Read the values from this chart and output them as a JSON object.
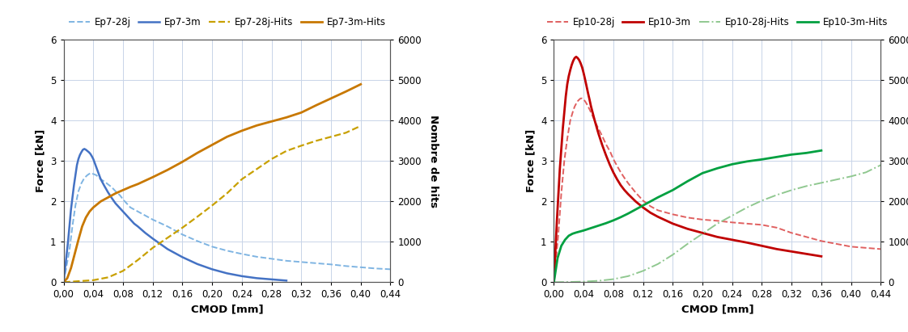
{
  "left": {
    "xlabel": "CMOD [mm]",
    "ylabel_left": "Force [kN]",
    "ylabel_right": "Nombre de hits",
    "xlim": [
      0,
      0.44
    ],
    "ylim_left": [
      0,
      6
    ],
    "ylim_right": [
      0,
      6000
    ],
    "xticks": [
      0.0,
      0.04,
      0.08,
      0.12,
      0.16,
      0.2,
      0.24,
      0.28,
      0.32,
      0.36,
      0.4,
      0.44
    ],
    "xtick_labels": [
      "0,00",
      "0,04",
      "0,08",
      "0,12",
      "0,16",
      "0,20",
      "0,24",
      "0,28",
      "0,32",
      "0,36",
      "0,40",
      "0,44"
    ],
    "yticks_left": [
      0,
      1,
      2,
      3,
      4,
      5,
      6
    ],
    "yticks_right": [
      0,
      1000,
      2000,
      3000,
      4000,
      5000,
      6000
    ],
    "legend": [
      "Ep7-28j",
      "Ep7-3m",
      "Ep7-28j-Hits",
      "Ep7-3m-Hits"
    ],
    "color_28j": "#7EB4E2",
    "color_3m": "#4472C4",
    "color_hits_28j": "#C8A000",
    "color_hits_3m": "#C87800",
    "ep7_28j_x": [
      0,
      0.008,
      0.012,
      0.016,
      0.02,
      0.024,
      0.028,
      0.032,
      0.036,
      0.04,
      0.044,
      0.05,
      0.056,
      0.06,
      0.065,
      0.07,
      0.076,
      0.08,
      0.085,
      0.09,
      0.095,
      0.1,
      0.11,
      0.12,
      0.14,
      0.16,
      0.18,
      0.2,
      0.22,
      0.24,
      0.26,
      0.28,
      0.3,
      0.32,
      0.34,
      0.36,
      0.38,
      0.4,
      0.42,
      0.44
    ],
    "ep7_28j_y": [
      0,
      0.8,
      1.4,
      1.9,
      2.25,
      2.45,
      2.58,
      2.65,
      2.7,
      2.68,
      2.65,
      2.55,
      2.48,
      2.42,
      2.35,
      2.25,
      2.15,
      2.05,
      1.95,
      1.85,
      1.8,
      1.75,
      1.65,
      1.55,
      1.38,
      1.18,
      1.02,
      0.88,
      0.78,
      0.7,
      0.63,
      0.58,
      0.53,
      0.5,
      0.47,
      0.44,
      0.4,
      0.37,
      0.34,
      0.32
    ],
    "ep7_3m_x": [
      0,
      0.006,
      0.01,
      0.014,
      0.018,
      0.02,
      0.022,
      0.024,
      0.026,
      0.028,
      0.03,
      0.032,
      0.034,
      0.036,
      0.038,
      0.04,
      0.042,
      0.044,
      0.046,
      0.048,
      0.05,
      0.055,
      0.06,
      0.065,
      0.07,
      0.075,
      0.08,
      0.085,
      0.09,
      0.095,
      0.1,
      0.105,
      0.11,
      0.115,
      0.12,
      0.13,
      0.14,
      0.16,
      0.18,
      0.2,
      0.22,
      0.24,
      0.26,
      0.28,
      0.3
    ],
    "ep7_3m_y": [
      0,
      1.0,
      1.8,
      2.4,
      2.9,
      3.05,
      3.15,
      3.22,
      3.28,
      3.3,
      3.28,
      3.25,
      3.22,
      3.18,
      3.12,
      3.05,
      2.95,
      2.85,
      2.75,
      2.65,
      2.55,
      2.38,
      2.22,
      2.08,
      1.95,
      1.85,
      1.75,
      1.65,
      1.55,
      1.45,
      1.38,
      1.3,
      1.22,
      1.15,
      1.08,
      0.95,
      0.82,
      0.62,
      0.45,
      0.32,
      0.22,
      0.15,
      0.1,
      0.07,
      0.04
    ],
    "ep7_hits28j_x": [
      0,
      0.04,
      0.06,
      0.08,
      0.1,
      0.12,
      0.14,
      0.16,
      0.18,
      0.2,
      0.22,
      0.24,
      0.26,
      0.28,
      0.3,
      0.32,
      0.34,
      0.36,
      0.38,
      0.4
    ],
    "ep7_hits28j_y": [
      0,
      50,
      120,
      280,
      550,
      850,
      1100,
      1350,
      1620,
      1900,
      2200,
      2550,
      2800,
      3050,
      3250,
      3380,
      3500,
      3600,
      3700,
      3870
    ],
    "ep7_hits3m_x": [
      0,
      0.005,
      0.01,
      0.015,
      0.02,
      0.025,
      0.03,
      0.035,
      0.04,
      0.05,
      0.06,
      0.07,
      0.08,
      0.09,
      0.1,
      0.12,
      0.14,
      0.16,
      0.18,
      0.2,
      0.22,
      0.24,
      0.26,
      0.28,
      0.3,
      0.32,
      0.34,
      0.36,
      0.38,
      0.4
    ],
    "ep7_hits3m_y": [
      0,
      100,
      350,
      700,
      1050,
      1380,
      1600,
      1750,
      1850,
      2000,
      2100,
      2200,
      2280,
      2360,
      2430,
      2600,
      2780,
      2980,
      3200,
      3400,
      3600,
      3750,
      3880,
      3980,
      4080,
      4200,
      4380,
      4550,
      4720,
      4900
    ]
  },
  "right": {
    "xlabel": "CMOD [mm]",
    "ylabel_left": "Force [kN]",
    "ylabel_right": "Nombre de hits",
    "xlim": [
      0,
      0.44
    ],
    "ylim_left": [
      0,
      6
    ],
    "ylim_right": [
      0,
      6000
    ],
    "xticks": [
      0.0,
      0.04,
      0.08,
      0.12,
      0.16,
      0.2,
      0.24,
      0.28,
      0.32,
      0.36,
      0.4,
      0.44
    ],
    "xtick_labels": [
      "0,00",
      "0,04",
      "0,08",
      "0,12",
      "0,16",
      "0,20",
      "0,24",
      "0,28",
      "0,32",
      "0,36",
      "0,40",
      "0,44"
    ],
    "yticks_left": [
      0,
      1,
      2,
      3,
      4,
      5,
      6
    ],
    "yticks_right": [
      0,
      1000,
      2000,
      3000,
      4000,
      5000,
      6000
    ],
    "legend": [
      "Ep10-28j",
      "Ep10-3m",
      "Ep10-28j-Hits",
      "Ep10-3m-Hits"
    ],
    "color_28j": "#E06060",
    "color_3m": "#C00000",
    "color_hits_28j": "#90C890",
    "color_hits_3m": "#00A040",
    "ep10_28j_x": [
      0,
      0.006,
      0.01,
      0.014,
      0.018,
      0.022,
      0.026,
      0.028,
      0.03,
      0.032,
      0.034,
      0.036,
      0.038,
      0.04,
      0.042,
      0.044,
      0.048,
      0.052,
      0.056,
      0.06,
      0.065,
      0.07,
      0.076,
      0.08,
      0.085,
      0.09,
      0.095,
      0.1,
      0.11,
      0.12,
      0.13,
      0.14,
      0.16,
      0.18,
      0.2,
      0.22,
      0.24,
      0.26,
      0.28,
      0.3,
      0.32,
      0.34,
      0.36,
      0.38,
      0.4,
      0.42,
      0.44
    ],
    "ep10_28j_y": [
      0,
      1.2,
      2.2,
      3.0,
      3.55,
      4.0,
      4.25,
      4.35,
      4.42,
      4.48,
      4.52,
      4.55,
      4.55,
      4.52,
      4.48,
      4.42,
      4.28,
      4.12,
      3.95,
      3.8,
      3.62,
      3.42,
      3.22,
      3.05,
      2.88,
      2.72,
      2.58,
      2.45,
      2.22,
      2.02,
      1.88,
      1.78,
      1.68,
      1.6,
      1.55,
      1.52,
      1.48,
      1.45,
      1.42,
      1.35,
      1.22,
      1.12,
      1.02,
      0.95,
      0.88,
      0.85,
      0.82
    ],
    "ep10_3m_x": [
      0,
      0.004,
      0.008,
      0.012,
      0.016,
      0.018,
      0.02,
      0.022,
      0.024,
      0.026,
      0.028,
      0.03,
      0.032,
      0.034,
      0.036,
      0.038,
      0.04,
      0.042,
      0.044,
      0.046,
      0.048,
      0.05,
      0.055,
      0.06,
      0.065,
      0.07,
      0.075,
      0.08,
      0.085,
      0.09,
      0.095,
      0.1,
      0.11,
      0.12,
      0.13,
      0.14,
      0.16,
      0.18,
      0.2,
      0.22,
      0.24,
      0.26,
      0.28,
      0.3,
      0.32,
      0.34,
      0.36
    ],
    "ep10_3m_y": [
      0,
      1.5,
      2.8,
      3.8,
      4.6,
      4.9,
      5.1,
      5.25,
      5.38,
      5.48,
      5.55,
      5.58,
      5.55,
      5.5,
      5.42,
      5.32,
      5.18,
      5.02,
      4.85,
      4.68,
      4.52,
      4.35,
      4.0,
      3.68,
      3.4,
      3.15,
      2.92,
      2.72,
      2.55,
      2.4,
      2.28,
      2.18,
      2.0,
      1.85,
      1.72,
      1.62,
      1.45,
      1.32,
      1.22,
      1.12,
      1.05,
      0.98,
      0.9,
      0.82,
      0.76,
      0.7,
      0.64
    ],
    "ep10_hits28j_x": [
      0,
      0.02,
      0.04,
      0.06,
      0.08,
      0.1,
      0.12,
      0.14,
      0.16,
      0.18,
      0.2,
      0.22,
      0.24,
      0.26,
      0.28,
      0.3,
      0.32,
      0.34,
      0.36,
      0.38,
      0.4,
      0.42,
      0.44
    ],
    "ep10_hits28j_y": [
      0,
      5,
      15,
      35,
      75,
      150,
      280,
      450,
      680,
      950,
      1200,
      1450,
      1650,
      1850,
      2020,
      2160,
      2280,
      2380,
      2460,
      2540,
      2620,
      2720,
      2900
    ],
    "ep10_hits3m_x": [
      0,
      0.005,
      0.01,
      0.015,
      0.02,
      0.025,
      0.03,
      0.04,
      0.05,
      0.06,
      0.07,
      0.08,
      0.09,
      0.1,
      0.12,
      0.14,
      0.16,
      0.18,
      0.2,
      0.22,
      0.24,
      0.26,
      0.28,
      0.3,
      0.32,
      0.34,
      0.36
    ],
    "ep10_hits3m_y": [
      0,
      600,
      900,
      1050,
      1150,
      1200,
      1230,
      1280,
      1340,
      1400,
      1460,
      1530,
      1610,
      1700,
      1900,
      2100,
      2280,
      2500,
      2700,
      2820,
      2920,
      2990,
      3040,
      3100,
      3160,
      3200,
      3260
    ]
  },
  "bg_color": "#FFFFFF",
  "grid_color": "#C8D4E8",
  "tick_fontsize": 8.5,
  "label_fontsize": 9.5,
  "legend_fontsize": 8.5
}
